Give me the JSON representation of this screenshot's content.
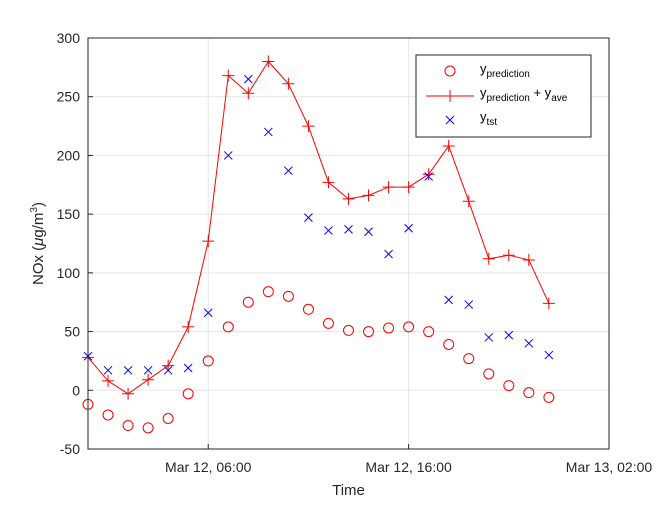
{
  "chart_data": {
    "type": "line",
    "title": "",
    "xlabel": "Time",
    "ylabel": "NOx (μg/m³)",
    "ylabel_parts": {
      "prefix": "NOx (",
      "mu": "μ",
      "unit": "g/m",
      "exp": "3",
      "suffix": ")"
    },
    "ylim": [
      -50,
      300
    ],
    "yticks": [
      -50,
      0,
      50,
      100,
      150,
      200,
      250,
      300
    ],
    "ytick_labels": [
      "-50",
      "0",
      "50",
      "100",
      "150",
      "200",
      "250",
      "300"
    ],
    "xlim": [
      "2017-03-12T00:00",
      "2017-03-13T02:00"
    ],
    "xticks": [
      "2017-03-12T06:00",
      "2017-03-12T16:00",
      "2017-03-13T02:00"
    ],
    "xtick_labels": [
      "Mar 12, 06:00",
      "Mar 12, 16:00",
      "Mar 13, 02:00"
    ],
    "grid": true,
    "legend_position": "top-right",
    "x": [
      "2017-03-12T00:00",
      "2017-03-12T01:00",
      "2017-03-12T02:00",
      "2017-03-12T03:00",
      "2017-03-12T04:00",
      "2017-03-12T05:00",
      "2017-03-12T06:00",
      "2017-03-12T07:00",
      "2017-03-12T08:00",
      "2017-03-12T09:00",
      "2017-03-12T10:00",
      "2017-03-12T11:00",
      "2017-03-12T12:00",
      "2017-03-12T13:00",
      "2017-03-12T14:00",
      "2017-03-12T15:00",
      "2017-03-12T16:00",
      "2017-03-12T17:00",
      "2017-03-12T18:00",
      "2017-03-12T19:00",
      "2017-03-12T20:00",
      "2017-03-12T21:00",
      "2017-03-12T22:00",
      "2017-03-12T23:00"
    ],
    "series": [
      {
        "name": "y_prediction",
        "legend": {
          "main": "y",
          "sub": "prediction",
          "rest": "",
          "sub2": ""
        },
        "color": "#ff0000",
        "marker": "circle",
        "line": false,
        "values": [
          -12,
          -21,
          -30,
          -32,
          -24,
          -3,
          25,
          54,
          75,
          84,
          80,
          69,
          57,
          51,
          50,
          53,
          54,
          50,
          39,
          27,
          14,
          4,
          -2,
          -6
        ]
      },
      {
        "name": "y_prediction + y_ave",
        "legend": {
          "main": "y",
          "sub": "prediction",
          "rest": " + y",
          "sub2": "ave"
        },
        "color": "#ff0000",
        "marker": "plus",
        "line": true,
        "values": [
          28,
          8,
          -3,
          9,
          21,
          54,
          127,
          268,
          253,
          280,
          261,
          225,
          177,
          163,
          166,
          173,
          173,
          184,
          208,
          161,
          112,
          115,
          111,
          74
        ]
      },
      {
        "name": "y_tst",
        "legend": {
          "main": "y",
          "sub": "tst",
          "rest": "",
          "sub2": ""
        },
        "color": "#0000ff",
        "marker": "x",
        "line": false,
        "values": [
          29,
          17,
          17,
          17,
          17,
          19,
          66,
          200,
          265,
          220,
          187,
          147,
          136,
          137,
          135,
          116,
          138,
          182,
          77,
          73,
          45,
          47,
          40,
          30
        ]
      }
    ]
  }
}
